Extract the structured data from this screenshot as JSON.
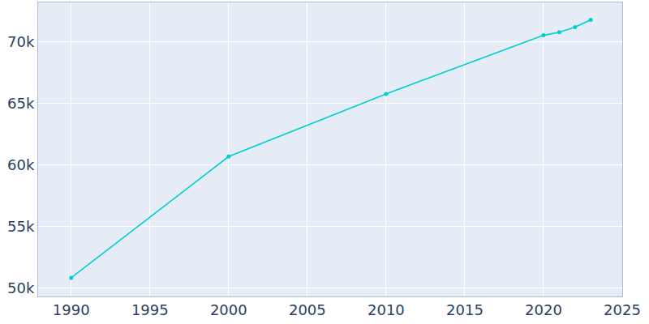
{
  "chart_data": {
    "type": "line",
    "x": [
      1990,
      2000,
      2010,
      2020,
      2021,
      2022,
      2023
    ],
    "values": [
      50860,
      60690,
      65780,
      70530,
      70790,
      71190,
      71780
    ],
    "color": "#00ced1",
    "marker": "circle",
    "xlim": [
      1987.9,
      2025
    ],
    "xticks": [
      1990,
      1995,
      2000,
      2005,
      2010,
      2015,
      2020,
      2025
    ],
    "ylim": [
      49340,
      73200
    ],
    "yticks": [
      {
        "value": 50000,
        "label": "50k"
      },
      {
        "value": 55000,
        "label": "55k"
      },
      {
        "value": 60000,
        "label": "60k"
      },
      {
        "value": 65000,
        "label": "65k"
      },
      {
        "value": 70000,
        "label": "70k"
      }
    ],
    "grid": true
  }
}
